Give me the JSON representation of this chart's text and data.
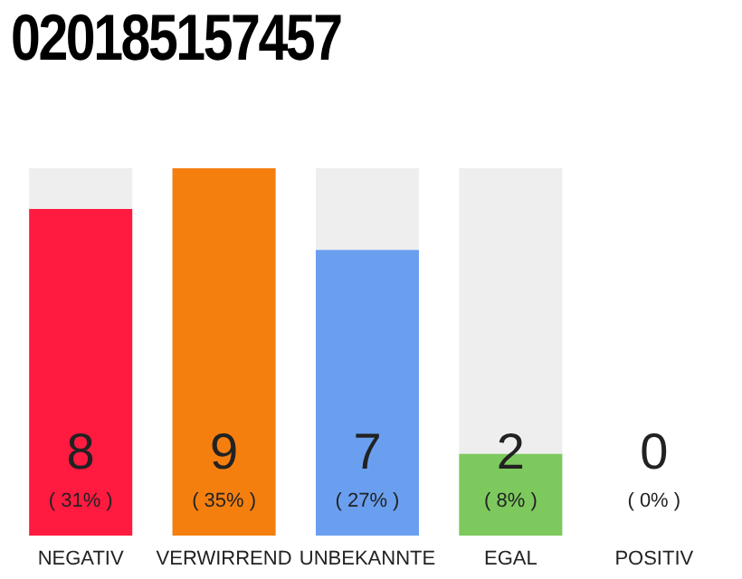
{
  "chart_data": {
    "type": "bar",
    "title": "020185157457",
    "categories": [
      "NEGATIV",
      "VERWIRREND",
      "UNBEKANNTE",
      "EGAL",
      "POSITIV"
    ],
    "values": [
      8,
      9,
      7,
      2,
      0
    ],
    "colors": [
      "#ff1a40",
      "#f47f0f",
      "#6a9ff0",
      "#7dc95e",
      "#e0e0e0"
    ],
    "data_labels": true,
    "annotations": [
      "( 31% )",
      "( 35% )",
      "( 27% )",
      "( 8% )",
      "( 0% )"
    ],
    "tick_labels": "x"
  }
}
